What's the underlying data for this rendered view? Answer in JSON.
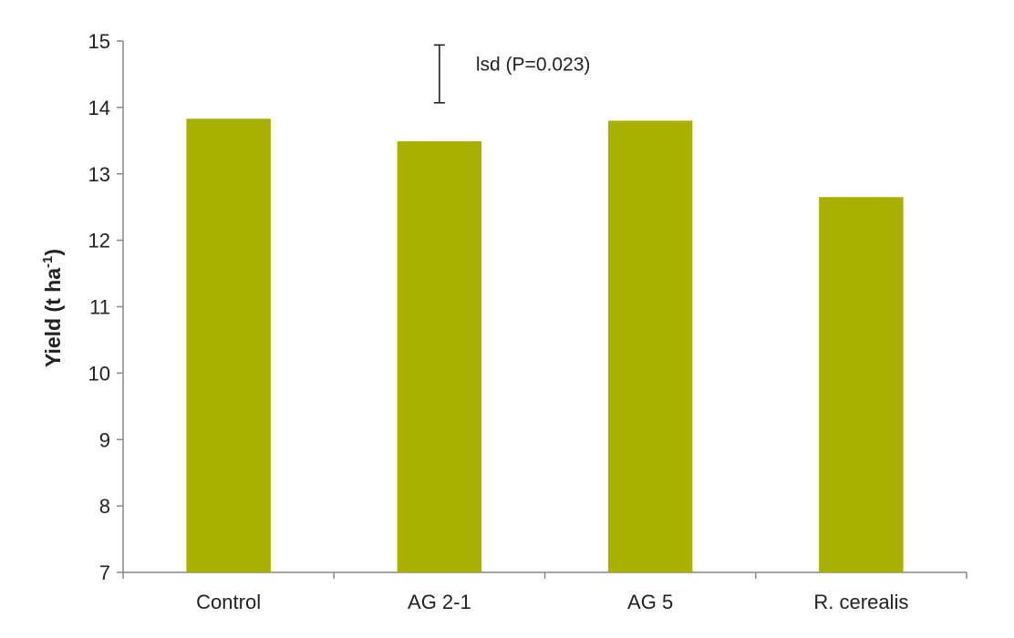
{
  "chart_data": {
    "type": "bar",
    "title": "",
    "xlabel": "",
    "ylabel": "Yield (t ha",
    "ylabel_superscript": "-1",
    "ylabel_close": ")",
    "categories": [
      "Control",
      "AG 2-1",
      "AG 5",
      "R. cerealis"
    ],
    "values": [
      13.83,
      13.49,
      13.8,
      12.65
    ],
    "ylim": [
      7,
      15
    ],
    "yticks": [
      7,
      8,
      9,
      10,
      11,
      12,
      13,
      14,
      15
    ],
    "grid": false,
    "legend": "none",
    "bar_color": "#a8b000",
    "annotation": {
      "label": "lsd (P=0.023)",
      "lsd_range": [
        14.07,
        14.94
      ]
    }
  }
}
